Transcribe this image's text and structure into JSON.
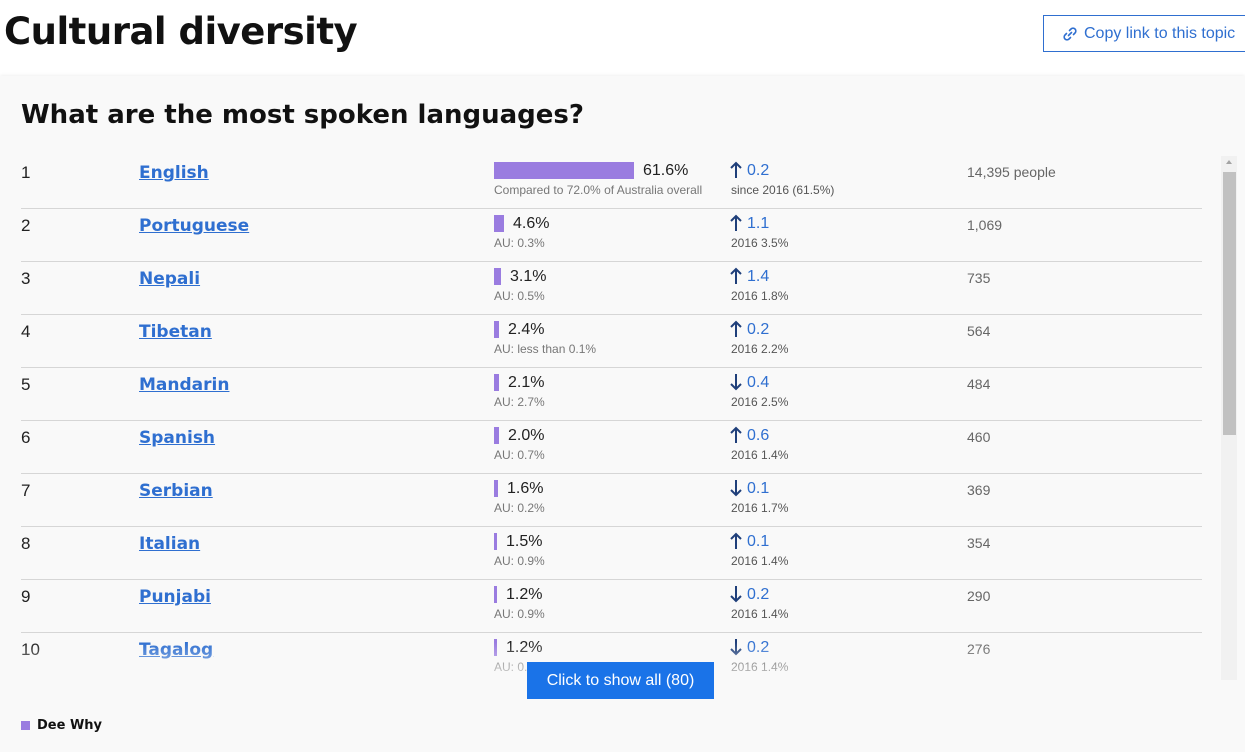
{
  "header": {
    "title": "Cultural diversity",
    "copy_link_label": "Copy link to this topic"
  },
  "section": {
    "heading": "What are the most spoken languages?"
  },
  "rows": [
    {
      "rank": "1",
      "language": "English",
      "percent": "61.6%",
      "percent_value": 61.6,
      "compare": "Compared to 72.0% of Australia overall",
      "direction": "up",
      "change": "0.2",
      "since": "since 2016 (61.5%)",
      "count": "14,395 people"
    },
    {
      "rank": "2",
      "language": "Portuguese",
      "percent": "4.6%",
      "percent_value": 4.6,
      "compare": "AU: 0.3%",
      "direction": "up",
      "change": "1.1",
      "since": "2016 3.5%",
      "count": "1,069"
    },
    {
      "rank": "3",
      "language": "Nepali",
      "percent": "3.1%",
      "percent_value": 3.1,
      "compare": "AU: 0.5%",
      "direction": "up",
      "change": "1.4",
      "since": "2016 1.8%",
      "count": "735"
    },
    {
      "rank": "4",
      "language": "Tibetan",
      "percent": "2.4%",
      "percent_value": 2.4,
      "compare": "AU: less than 0.1%",
      "direction": "up",
      "change": "0.2",
      "since": "2016 2.2%",
      "count": "564"
    },
    {
      "rank": "5",
      "language": "Mandarin",
      "percent": "2.1%",
      "percent_value": 2.1,
      "compare": "AU: 2.7%",
      "direction": "down",
      "change": "0.4",
      "since": "2016 2.5%",
      "count": "484"
    },
    {
      "rank": "6",
      "language": "Spanish",
      "percent": "2.0%",
      "percent_value": 2.0,
      "compare": "AU: 0.7%",
      "direction": "up",
      "change": "0.6",
      "since": "2016 1.4%",
      "count": "460"
    },
    {
      "rank": "7",
      "language": "Serbian",
      "percent": "1.6%",
      "percent_value": 1.6,
      "compare": "AU: 0.2%",
      "direction": "down",
      "change": "0.1",
      "since": "2016 1.7%",
      "count": "369"
    },
    {
      "rank": "8",
      "language": "Italian",
      "percent": "1.5%",
      "percent_value": 1.5,
      "compare": "AU: 0.9%",
      "direction": "up",
      "change": "0.1",
      "since": "2016 1.4%",
      "count": "354"
    },
    {
      "rank": "9",
      "language": "Punjabi",
      "percent": "1.2%",
      "percent_value": 1.2,
      "compare": "AU: 0.9%",
      "direction": "down",
      "change": "0.2",
      "since": "2016 1.4%",
      "count": "290"
    },
    {
      "rank": "10",
      "language": "Tagalog",
      "percent": "1.2%",
      "percent_value": 1.2,
      "compare": "AU: 0.7%",
      "direction": "down",
      "change": "0.2",
      "since": "2016 1.4%",
      "count": "276"
    }
  ],
  "show_all_label": "Click to show all (80)",
  "legend": {
    "label": "Dee Why",
    "color": "#9a7ce0"
  },
  "colors": {
    "accent": "#2f6fd0",
    "button": "#1a73e8",
    "bar": "#9a7ce0"
  }
}
